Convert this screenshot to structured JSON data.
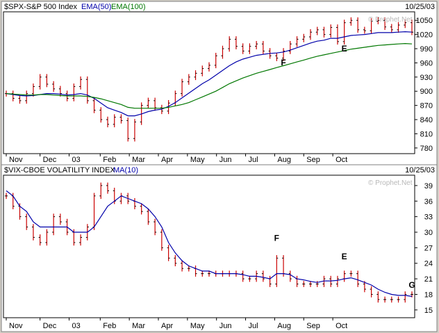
{
  "chart_data": [
    {
      "type": "line",
      "subtype": "ohlc-bars",
      "header": {
        "symbol": "$SPX-S&P 500 Index",
        "ema1": "EMA(50)",
        "ema2": "EMA(100)",
        "date": "10/25/03"
      },
      "watermark": "© Prophet.Net",
      "x_tick_labels": [
        "Nov",
        "Dec",
        "03",
        "Feb",
        "Mar",
        "Apr",
        "May",
        "Jun",
        "Jul",
        "Aug",
        "Sep",
        "Oct"
      ],
      "x_index_range": [
        0,
        60
      ],
      "x_tick_positions": [
        0,
        5,
        9.3,
        13.9,
        18.2,
        22.5,
        26.8,
        31.1,
        35.4,
        39.7,
        44,
        48.3
      ],
      "yticks": [
        780,
        810,
        840,
        870,
        900,
        930,
        960,
        990,
        1020,
        1050
      ],
      "ylim": [
        768,
        1068
      ],
      "series": [
        {
          "name": "$SPX-S&P 500 Index",
          "color": "#cc0000",
          "values": [
            895,
            885,
            880,
            895,
            910,
            930,
            915,
            905,
            895,
            885,
            910,
            925,
            880,
            860,
            840,
            830,
            845,
            838,
            800,
            835,
            870,
            880,
            865,
            858,
            875,
            895,
            920,
            930,
            938,
            948,
            955,
            975,
            990,
            1010,
            995,
            985,
            995,
            1000,
            985,
            975,
            970,
            985,
            1000,
            1010,
            1015,
            1025,
            1030,
            1020,
            1035,
            1005,
            1045,
            1050,
            1030,
            1028,
            1048,
            1050,
            1036,
            1030,
            1040,
            1045,
            1025
          ]
        },
        {
          "name": "EMA(50)",
          "color": "#0000aa",
          "values": [
            895,
            893,
            891,
            890,
            891,
            893,
            895,
            895,
            894,
            892,
            893,
            895,
            892,
            885,
            875,
            865,
            860,
            855,
            848,
            848,
            852,
            857,
            860,
            862,
            868,
            876,
            886,
            896,
            906,
            916,
            924,
            934,
            944,
            954,
            962,
            968,
            972,
            976,
            978,
            980,
            981,
            983,
            987,
            992,
            997,
            1002,
            1006,
            1008,
            1012,
            1012,
            1015,
            1018,
            1019,
            1020,
            1022,
            1024,
            1024,
            1024,
            1025,
            1026,
            1025
          ]
        },
        {
          "name": "EMA(100)",
          "color": "#007700",
          "values": [
            895,
            894,
            893,
            892,
            892,
            893,
            893,
            892,
            891,
            890,
            890,
            890,
            889,
            887,
            884,
            880,
            876,
            872,
            866,
            864,
            864,
            864,
            864,
            864,
            866,
            869,
            872,
            876,
            882,
            888,
            894,
            900,
            908,
            916,
            922,
            928,
            933,
            938,
            942,
            946,
            950,
            954,
            958,
            962,
            966,
            970,
            974,
            977,
            980,
            983,
            986,
            989,
            991,
            993,
            995,
            997,
            998,
            999,
            1000,
            1001,
            1000
          ]
        }
      ],
      "annotations": [
        {
          "text": "F",
          "x_index": 41,
          "y": 955
        },
        {
          "text": "E",
          "x_index": 50,
          "y": 984
        }
      ]
    },
    {
      "type": "line",
      "subtype": "ohlc-bars",
      "header": {
        "symbol": "$VIX-CBOE VOLATILITY INDEX",
        "ma": "MA(10)",
        "date": "10/25/03"
      },
      "watermark": "© Prophet.Net",
      "x_tick_labels": [
        "Nov",
        "Dec",
        "03",
        "Feb",
        "Mar",
        "Apr",
        "May",
        "Jun",
        "Jul",
        "Aug",
        "Sep",
        "Oct"
      ],
      "x_index_range": [
        0,
        60
      ],
      "x_tick_positions": [
        0,
        5,
        9.3,
        13.9,
        18.2,
        22.5,
        26.8,
        31.1,
        35.4,
        39.7,
        44,
        48.3
      ],
      "yticks": [
        15,
        18,
        21,
        24,
        27,
        30,
        33,
        36,
        39
      ],
      "ylim": [
        13.5,
        41
      ],
      "series": [
        {
          "name": "$VIX-CBOE VOLATILITY INDEX",
          "color": "#cc0000",
          "values": [
            37,
            35,
            33,
            31,
            29,
            28,
            30,
            33,
            32,
            30,
            28,
            29,
            31,
            37,
            39,
            38,
            36,
            37,
            36,
            35,
            34,
            32,
            30,
            27,
            25,
            24,
            23,
            23,
            22,
            22,
            22,
            22,
            22,
            22,
            22,
            21,
            21,
            22,
            21,
            20,
            25,
            22,
            21,
            20,
            20,
            20,
            20,
            21,
            20,
            21,
            22,
            22,
            20,
            19,
            18,
            17,
            17,
            17,
            17,
            18,
            18
          ]
        },
        {
          "name": "MA(10)",
          "color": "#0000aa",
          "values": [
            38,
            37,
            35,
            34,
            32,
            31,
            31,
            31,
            31,
            31,
            30,
            30,
            30,
            31,
            33,
            35,
            36,
            37,
            36.5,
            36,
            35.5,
            34.5,
            33,
            31,
            28,
            26,
            24.5,
            23.5,
            23,
            22.5,
            22.5,
            22,
            22,
            22,
            22,
            21.8,
            21.5,
            21.5,
            21.3,
            21,
            22,
            22,
            21.8,
            21,
            20.8,
            20.5,
            20.3,
            20.6,
            20.6,
            20.7,
            21,
            21.2,
            20.8,
            20.3,
            19.8,
            19,
            18.4,
            18,
            17.8,
            17.8,
            17.6
          ]
        }
      ],
      "annotations": [
        {
          "text": "F",
          "x_index": 40,
          "y": 28.3
        },
        {
          "text": "E",
          "x_index": 50,
          "y": 24.8
        },
        {
          "text": "G",
          "x_index": 60,
          "y": 19.3
        }
      ]
    }
  ]
}
